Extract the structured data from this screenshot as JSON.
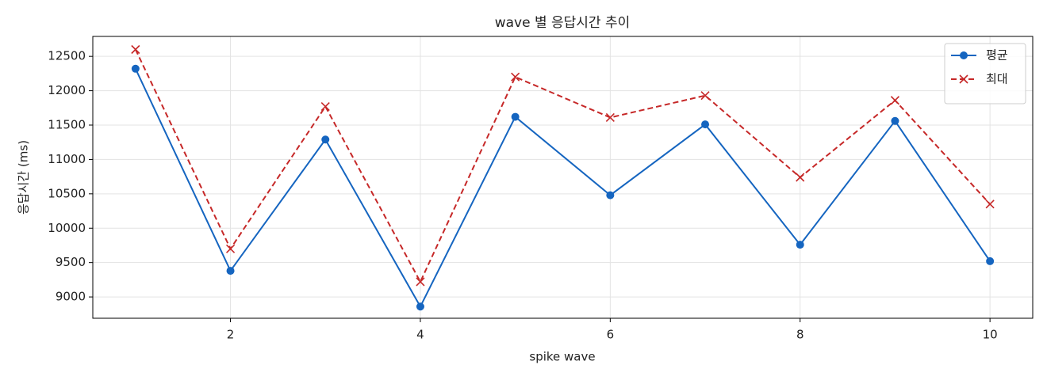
{
  "chart_data": {
    "type": "line",
    "title": "wave 별 응답시간 추이",
    "x_label": "spike wave",
    "y_label": "응답시간 (ms)",
    "x": [
      1,
      2,
      3,
      4,
      5,
      6,
      7,
      8,
      9,
      10
    ],
    "series": [
      {
        "name": "평균",
        "color": "#1565c0",
        "marker": "circle",
        "dashed": false,
        "values": [
          12320,
          9380,
          11290,
          8860,
          11620,
          10480,
          11510,
          9760,
          11560,
          9520
        ]
      },
      {
        "name": "최대",
        "color": "#c62828",
        "marker": "cross",
        "dashed": true,
        "values": [
          12600,
          9700,
          11770,
          9220,
          12200,
          11610,
          11930,
          10740,
          11860,
          10350
        ]
      }
    ],
    "xlim": [
      0.55,
      10.45
    ],
    "xticks": [
      2,
      4,
      6,
      8,
      10
    ],
    "ylim": [
      8690,
      12790
    ],
    "yticks": [
      9000,
      9500,
      10000,
      10500,
      11000,
      11500,
      12000,
      12500
    ],
    "grid": true,
    "legend": "upper right"
  }
}
